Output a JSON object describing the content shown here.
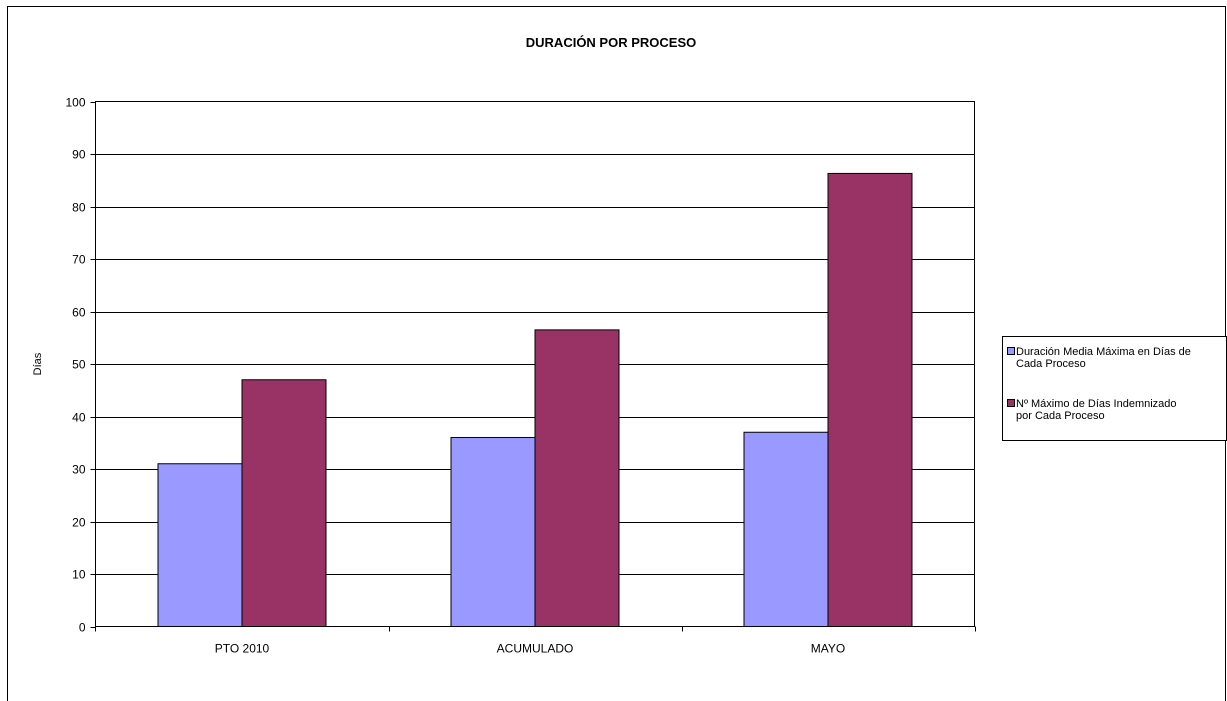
{
  "chart_data": {
    "type": "bar",
    "title": "DURACIÓN POR PROCESO",
    "xlabel": "",
    "ylabel": "Días",
    "ylim": [
      0,
      100
    ],
    "yticks": [
      0,
      10,
      20,
      30,
      40,
      50,
      60,
      70,
      80,
      90,
      100
    ],
    "grid": true,
    "legend_position": "right",
    "categories": [
      "PTO 2010",
      "ACUMULADO",
      "MAYO"
    ],
    "series": [
      {
        "name": "Duración Media Máxima en Días de Cada Proceso",
        "legend_lines": [
          "Duración Media Máxima en Días de",
          "Cada Proceso"
        ],
        "color": "#9999FF",
        "values": [
          31,
          36,
          37
        ]
      },
      {
        "name": "Nº Máximo de Días Indemnizado por Cada Proceso",
        "legend_lines": [
          "Nº Máximo de Días Indemnizado",
          "por Cada Proceso"
        ],
        "color": "#993366",
        "values": [
          47,
          56.5,
          86.3
        ]
      }
    ]
  }
}
